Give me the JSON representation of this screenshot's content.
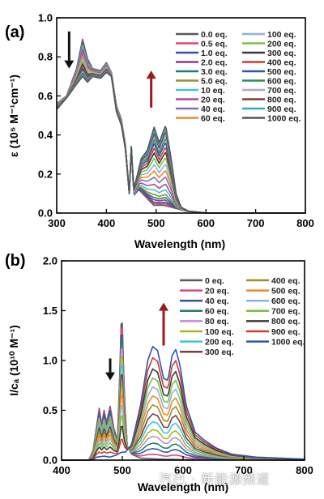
{
  "watermark": "汽已 · 新能源频道",
  "chart_data": [
    {
      "panel": "(a)",
      "type": "line",
      "xlabel": "Wavelength (nm)",
      "ylabel": "ε (10⁵ M⁻¹cm⁻¹)",
      "xlim": [
        300,
        800
      ],
      "ylim": [
        0,
        1.0
      ],
      "xticks": [
        300,
        400,
        500,
        600,
        700,
        800
      ],
      "yticks": [
        0.0,
        0.2,
        0.4,
        0.6,
        0.8,
        1.0
      ],
      "ytick_labels": [
        "0.0",
        "0.2",
        "0.4",
        "0.6",
        "0.8",
        "1.0"
      ],
      "grid": false,
      "legend_position": "top-right",
      "arrows": [
        {
          "direction": "down",
          "x": 325,
          "y_from": 0.93,
          "y_to": 0.74,
          "color": "#111111"
        },
        {
          "direction": "up",
          "x": 490,
          "y_from": 0.54,
          "y_to": 0.73,
          "color": "#a01818"
        }
      ],
      "series": [
        {
          "name": "0.0 eq.",
          "color": "#5a5a5a",
          "fraction": 0.0
        },
        {
          "name": "0.5 eq.",
          "color": "#e0457b",
          "fraction": 0.02
        },
        {
          "name": "1.0 eq.",
          "color": "#3553a6",
          "fraction": 0.04
        },
        {
          "name": "2.0 eq.",
          "color": "#8c3f8c",
          "fraction": 0.07
        },
        {
          "name": "3.0 eq.",
          "color": "#1f7f6f",
          "fraction": 0.1
        },
        {
          "name": "5.0 eq.",
          "color": "#9b8f2e",
          "fraction": 0.14
        },
        {
          "name": "10  eq.",
          "color": "#3fc5d8",
          "fraction": 0.2
        },
        {
          "name": "20  eq.",
          "color": "#b04a9a",
          "fraction": 0.27
        },
        {
          "name": "40  eq.",
          "color": "#7f6fc0",
          "fraction": 0.36
        },
        {
          "name": "60  eq.",
          "color": "#f08a24",
          "fraction": 0.44
        },
        {
          "name": "100 eq.",
          "color": "#8fb2de",
          "fraction": 0.52
        },
        {
          "name": "200 eq.",
          "color": "#7bc043",
          "fraction": 0.6
        },
        {
          "name": "300 eq.",
          "color": "#3a3a3a",
          "fraction": 0.67
        },
        {
          "name": "400 eq.",
          "color": "#d43a2f",
          "fraction": 0.73
        },
        {
          "name": "500 eq.",
          "color": "#2a56b5",
          "fraction": 0.79
        },
        {
          "name": "600 eq.",
          "color": "#2e8b57",
          "fraction": 0.84
        },
        {
          "name": "700 eq.",
          "color": "#b0a8c8",
          "fraction": 0.88
        },
        {
          "name": "800 eq.",
          "color": "#7a3f3f",
          "fraction": 0.92
        },
        {
          "name": "900 eq.",
          "color": "#2ab0c4",
          "fraction": 0.96
        },
        {
          "name": "1000 eq.",
          "color": "#555555",
          "fraction": 1.0
        }
      ],
      "keypoints_initial": [
        [
          300,
          0.56
        ],
        [
          320,
          0.6
        ],
        [
          340,
          0.74
        ],
        [
          352,
          0.89
        ],
        [
          362,
          0.79
        ],
        [
          372,
          0.74
        ],
        [
          388,
          0.73
        ],
        [
          400,
          0.77
        ],
        [
          410,
          0.72
        ],
        [
          420,
          0.55
        ],
        [
          430,
          0.48
        ],
        [
          438,
          0.35
        ],
        [
          446,
          0.1
        ],
        [
          450,
          0.34
        ],
        [
          455,
          0.09
        ],
        [
          465,
          0.12
        ],
        [
          480,
          0.08
        ],
        [
          495,
          0.04
        ],
        [
          515,
          0.04
        ],
        [
          530,
          0.03
        ],
        [
          545,
          0.02
        ],
        [
          560,
          0.01
        ],
        [
          600,
          0.0
        ],
        [
          800,
          0.0
        ]
      ],
      "keypoints_final": [
        [
          300,
          0.53
        ],
        [
          320,
          0.59
        ],
        [
          340,
          0.66
        ],
        [
          352,
          0.7
        ],
        [
          362,
          0.67
        ],
        [
          372,
          0.7
        ],
        [
          388,
          0.69
        ],
        [
          400,
          0.72
        ],
        [
          410,
          0.7
        ],
        [
          420,
          0.52
        ],
        [
          430,
          0.45
        ],
        [
          438,
          0.33
        ],
        [
          446,
          0.1
        ],
        [
          450,
          0.34
        ],
        [
          455,
          0.12
        ],
        [
          470,
          0.28
        ],
        [
          482,
          0.32
        ],
        [
          496,
          0.44
        ],
        [
          506,
          0.36
        ],
        [
          519,
          0.45
        ],
        [
          530,
          0.28
        ],
        [
          540,
          0.1
        ],
        [
          550,
          0.03
        ],
        [
          565,
          0.01
        ],
        [
          600,
          0.0
        ],
        [
          800,
          0.0
        ]
      ]
    },
    {
      "panel": "(b)",
      "type": "line",
      "xlabel": "Wavelength (nm)",
      "ylabel": "I/cₐ (10¹⁰ M⁻¹)",
      "xlim": [
        400,
        800
      ],
      "ylim": [
        0,
        2.0
      ],
      "xticks": [
        400,
        500,
        600,
        700,
        800
      ],
      "xtick_labels": [
        "400",
        "500",
        "600",
        "700",
        "800"
      ],
      "yticks": [
        0.0,
        0.5,
        1.0,
        1.5,
        2.0
      ],
      "ytick_labels": [
        "0.0",
        "0.5",
        "1.0",
        "1.5",
        "2.0"
      ],
      "grid": false,
      "legend_position": "top-right",
      "arrows": [
        {
          "direction": "down",
          "x": 480,
          "y_from": 1.02,
          "y_to": 0.8,
          "color": "#111111"
        },
        {
          "direction": "up",
          "x": 568,
          "y_from": 1.15,
          "y_to": 1.58,
          "color": "#a01818"
        }
      ],
      "series": [
        {
          "name": "0   eq.",
          "color": "#5a5a5a",
          "fraction": 0.0
        },
        {
          "name": "20  eq.",
          "color": "#e0457b",
          "fraction": 0.04
        },
        {
          "name": "40  eq.",
          "color": "#3553a6",
          "fraction": 0.09
        },
        {
          "name": "60  eq.",
          "color": "#1f7f6f",
          "fraction": 0.14
        },
        {
          "name": "80  eq.",
          "color": "#c08ad8",
          "fraction": 0.2
        },
        {
          "name": "100 eq.",
          "color": "#a8b820",
          "fraction": 0.26
        },
        {
          "name": "200 eq.",
          "color": "#3fc5d8",
          "fraction": 0.33
        },
        {
          "name": "300 eq.",
          "color": "#7a3f3f",
          "fraction": 0.4
        },
        {
          "name": "400 eq.",
          "color": "#9b8f2e",
          "fraction": 0.48
        },
        {
          "name": "500 eq.",
          "color": "#f08a24",
          "fraction": 0.56
        },
        {
          "name": "600 eq.",
          "color": "#8fb2de",
          "fraction": 0.64
        },
        {
          "name": "700 eq.",
          "color": "#7bc043",
          "fraction": 0.72
        },
        {
          "name": "800 eq.",
          "color": "#3a3a3a",
          "fraction": 0.8
        },
        {
          "name": "900 eq.",
          "color": "#d43a2f",
          "fraction": 0.9
        },
        {
          "name": "1000 eq.",
          "color": "#2a56b5",
          "fraction": 1.0
        }
      ],
      "keypoints_initial": [
        [
          400,
          0.0
        ],
        [
          445,
          0.0
        ],
        [
          452,
          0.1
        ],
        [
          458,
          0.35
        ],
        [
          462,
          0.52
        ],
        [
          466,
          0.36
        ],
        [
          470,
          0.5
        ],
        [
          474,
          0.38
        ],
        [
          480,
          0.54
        ],
        [
          486,
          0.32
        ],
        [
          492,
          0.2
        ],
        [
          496,
          0.9
        ],
        [
          499,
          1.6
        ],
        [
          503,
          0.7
        ],
        [
          508,
          0.15
        ],
        [
          515,
          0.06
        ],
        [
          530,
          0.02
        ],
        [
          560,
          0.01
        ],
        [
          600,
          0.005
        ],
        [
          800,
          0.0
        ]
      ],
      "keypoints_final": [
        [
          400,
          0.0
        ],
        [
          450,
          0.0
        ],
        [
          458,
          0.03
        ],
        [
          470,
          0.04
        ],
        [
          480,
          0.03
        ],
        [
          490,
          0.05
        ],
        [
          499,
          0.08
        ],
        [
          505,
          0.08
        ],
        [
          515,
          0.15
        ],
        [
          530,
          0.55
        ],
        [
          542,
          1.0
        ],
        [
          550,
          1.14
        ],
        [
          558,
          1.1
        ],
        [
          568,
          0.82
        ],
        [
          575,
          0.8
        ],
        [
          582,
          1.05
        ],
        [
          588,
          1.11
        ],
        [
          595,
          0.95
        ],
        [
          605,
          0.55
        ],
        [
          620,
          0.28
        ],
        [
          635,
          0.2
        ],
        [
          655,
          0.12
        ],
        [
          680,
          0.06
        ],
        [
          720,
          0.03
        ],
        [
          800,
          0.01
        ]
      ]
    }
  ]
}
